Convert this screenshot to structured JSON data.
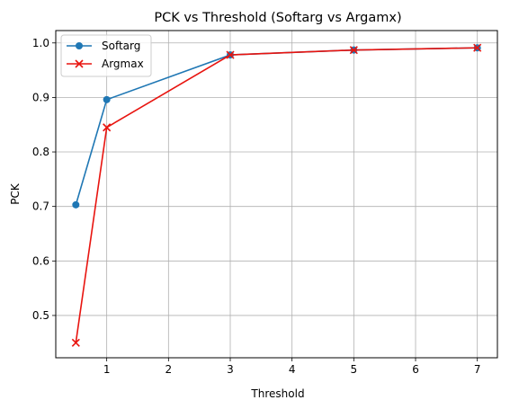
{
  "chart_data": {
    "type": "line",
    "title": "PCK vs Threshold (Softarg vs Argamx)",
    "xlabel": "Threshold",
    "ylabel": "PCK",
    "xlim": [
      0.175,
      7.325
    ],
    "ylim": [
      0.4224,
      1.0227
    ],
    "x_ticks": [
      1,
      2,
      3,
      4,
      5,
      6,
      7
    ],
    "x_tick_labels": [
      "1",
      "2",
      "3",
      "4",
      "5",
      "6",
      "7"
    ],
    "y_ticks": [
      0.5,
      0.6,
      0.7,
      0.8,
      0.9,
      1.0
    ],
    "y_tick_labels": [
      "0.5",
      "0.6",
      "0.7",
      "0.8",
      "0.9",
      "1.0"
    ],
    "grid": true,
    "legend_position": "top-left",
    "series": [
      {
        "name": "Softarg",
        "color": "#1f77b4",
        "marker": "circle",
        "x": [
          0.5,
          1,
          3,
          5,
          7
        ],
        "y": [
          0.703,
          0.896,
          0.978,
          0.987,
          0.991
        ]
      },
      {
        "name": "Argmax",
        "color": "#e8140f",
        "marker": "x",
        "x": [
          0.5,
          1,
          3,
          5,
          7
        ],
        "y": [
          0.45,
          0.845,
          0.978,
          0.987,
          0.991
        ]
      }
    ]
  }
}
